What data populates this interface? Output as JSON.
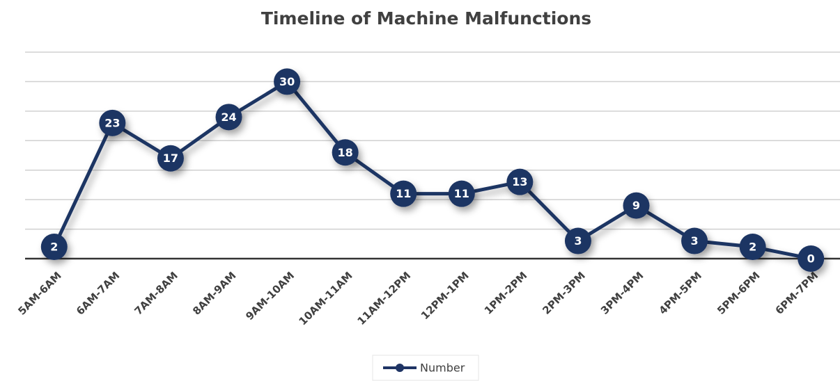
{
  "chart_data": {
    "type": "line",
    "title": "Timeline of Machine Malfunctions",
    "categories": [
      "5AM-6AM",
      "6AM-7AM",
      "7AM-8AM",
      "8AM-9AM",
      "9AM-10AM",
      "10AM-11AM",
      "11AM-12PM",
      "12PM-1PM",
      "1PM-2PM",
      "2PM-3PM",
      "3PM-4PM",
      "4PM-5PM",
      "5PM-6PM",
      "6PM-7PM"
    ],
    "series": [
      {
        "name": "Number",
        "color": "#1f3464",
        "values": [
          2,
          23,
          17,
          24,
          30,
          18,
          11,
          11,
          13,
          3,
          9,
          3,
          2,
          0
        ]
      }
    ],
    "ylim": [
      0,
      35
    ],
    "yticks": [
      0,
      5,
      10,
      15,
      20,
      25,
      30,
      35
    ],
    "grid": true,
    "legend": "bottom"
  }
}
